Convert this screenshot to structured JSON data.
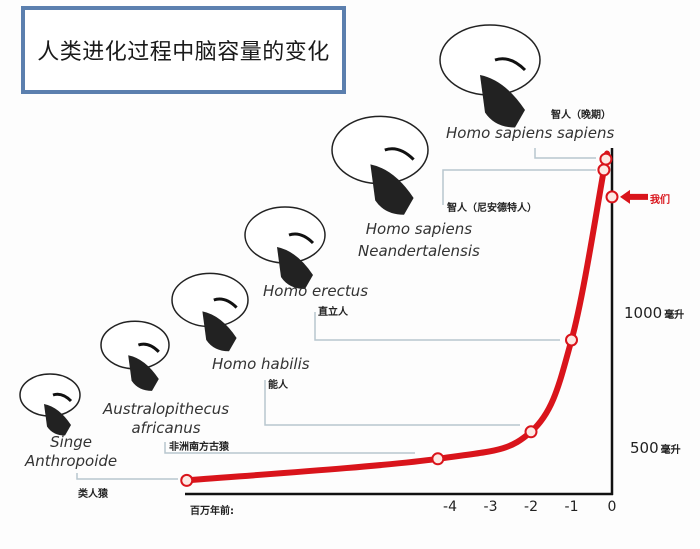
{
  "title": "人类进化过程中脑容量的变化",
  "species": [
    {
      "latin": "Singe Anthropoide",
      "latin_lines": [
        "Singe",
        "Anthropoide"
      ],
      "chinese": "类人猿"
    },
    {
      "latin": "Australopithecus africanus",
      "latin_lines": [
        "Australopithecus",
        "africanus"
      ],
      "chinese": "非洲南方古猿"
    },
    {
      "latin": "Homo habilis",
      "latin_lines": [
        "Homo habilis"
      ],
      "chinese": "能人"
    },
    {
      "latin": "Homo erectus",
      "latin_lines": [
        "Homo erectus"
      ],
      "chinese": "直立人"
    },
    {
      "latin": "Homo sapiens Neandertalensis",
      "latin_lines": [
        "Homo sapiens",
        "Neandertalensis"
      ],
      "chinese": "智人（尼安德特人）"
    },
    {
      "latin": "Homo sapiens sapiens",
      "latin_lines": [
        "Homo sapiens sapiens"
      ],
      "chinese": "智人（晚期）"
    }
  ],
  "chart_data": {
    "type": "line",
    "title": "人类进化过程中脑容量的变化",
    "xlabel": "百万年前:",
    "x_ticks": [
      -4,
      -3,
      -2,
      -1,
      0
    ],
    "y_ticks": [
      {
        "value": 500,
        "label": "500",
        "unit": "毫升"
      },
      {
        "value": 1000,
        "label": "1000",
        "unit": "毫升"
      }
    ],
    "series": [
      {
        "points": [
          {
            "x": -10.5,
            "y": 380,
            "label": "类人猿"
          },
          {
            "x": -4.3,
            "y": 460,
            "label": "非洲南方古猿"
          },
          {
            "x": -2.0,
            "y": 560,
            "label": "能人"
          },
          {
            "x": -1.0,
            "y": 900,
            "label": "直立人"
          },
          {
            "x": -0.2,
            "y": 1530,
            "label": "智人（尼安德特人）"
          },
          {
            "x": -0.15,
            "y": 1570,
            "label": "智人（晚期）"
          }
        ]
      }
    ],
    "marker_us": {
      "x": 0,
      "y": 1430,
      "label": "我们"
    },
    "colors": {
      "line": "#d9141b",
      "axis": "#111111",
      "connector": "#b8c6cf",
      "title_border": "#5b7fae"
    }
  }
}
